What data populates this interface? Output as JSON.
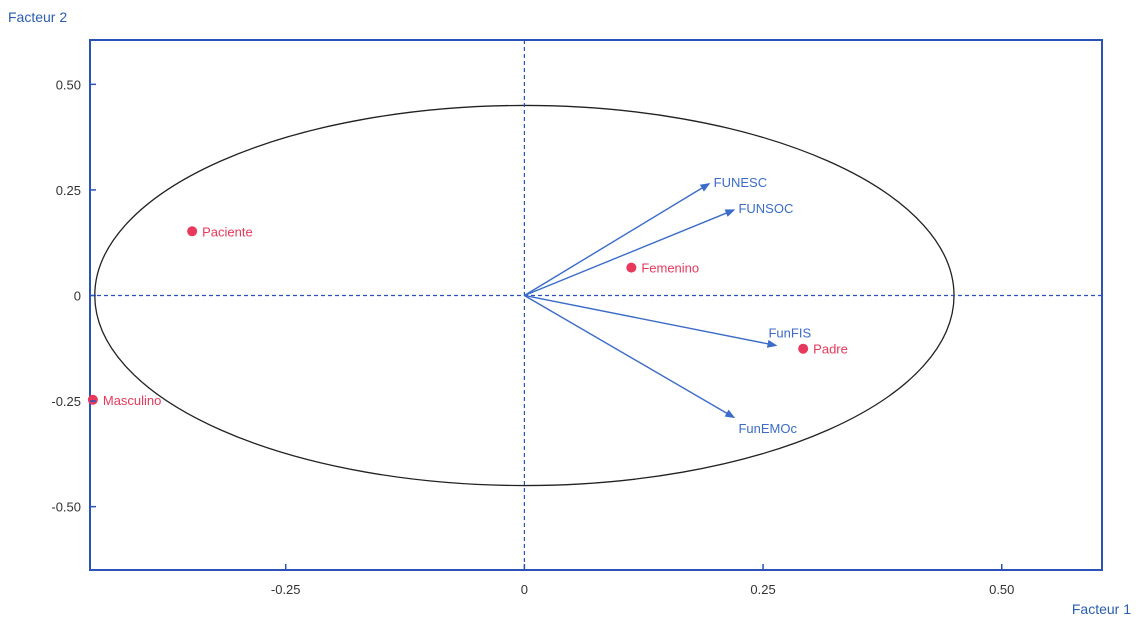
{
  "chart_data": {
    "type": "scatter",
    "xlabel": "Facteur 1",
    "ylabel": "Facteur 2",
    "xlim": [
      -0.455,
      0.605
    ],
    "ylim": [
      -0.65,
      0.605
    ],
    "x_ticks": [
      {
        "value": -0.25,
        "label": "-0.25"
      },
      {
        "value": 0,
        "label": "0"
      },
      {
        "value": 0.25,
        "label": "0.25"
      },
      {
        "value": 0.5,
        "label": "0.50"
      }
    ],
    "y_ticks": [
      {
        "value": 0.5,
        "label": "0.50"
      },
      {
        "value": 0.25,
        "label": "0.25"
      },
      {
        "value": 0,
        "label": "0"
      },
      {
        "value": -0.25,
        "label": "-0.25"
      },
      {
        "value": -0.5,
        "label": "-0.50"
      }
    ],
    "origin_lines": true,
    "ellipse": {
      "cx": 0,
      "cy": 0,
      "rx": 0.45,
      "ry": 0.45
    },
    "points": [
      {
        "label": "Paciente",
        "x": -0.348,
        "y": 0.152
      },
      {
        "label": "Femenino",
        "x": 0.112,
        "y": 0.066
      },
      {
        "label": "Padre",
        "x": 0.292,
        "y": -0.126
      },
      {
        "label": "Masculino",
        "x": -0.452,
        "y": -0.247
      }
    ],
    "vectors": [
      {
        "label": "FUNESC",
        "x": 0.193,
        "y": 0.264
      },
      {
        "label": "FUNSOC",
        "x": 0.219,
        "y": 0.202
      },
      {
        "label": "FunFIS",
        "x": 0.263,
        "y": -0.118
      },
      {
        "label": "FunEMOc",
        "x": 0.219,
        "y": -0.288
      }
    ],
    "colors": {
      "frame": "#2a52b8",
      "axis_title": "#2a5db0",
      "vector": "#3a6cc8",
      "point": "#e8395c",
      "ellipse": "#222222",
      "origin_line": "#2a52b8"
    }
  }
}
